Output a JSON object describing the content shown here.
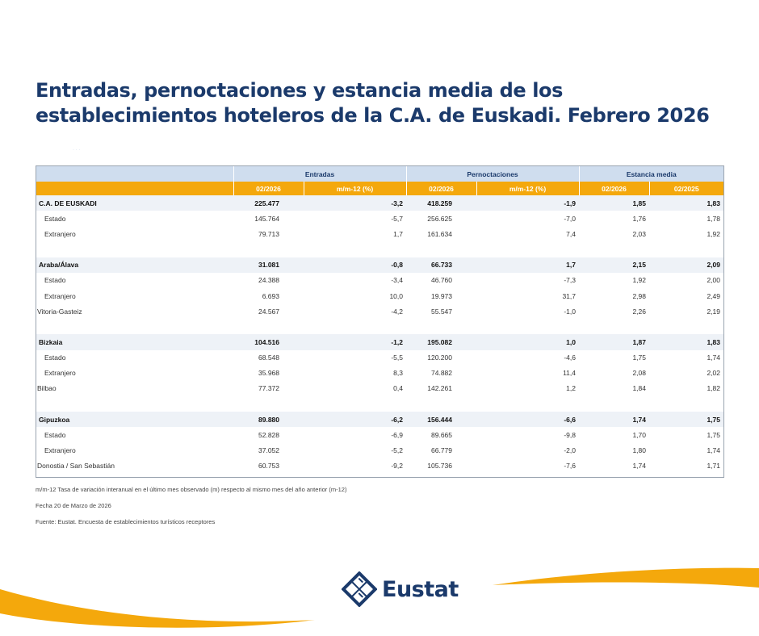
{
  "title": "Entradas, pernoctaciones y estancia media de los establecimientos hoteleros de la C.A. de Euskadi. Febrero 2026",
  "faint_text": "· ·   ·",
  "table": {
    "group_headers": [
      "Entradas",
      "Pernoctaciones",
      "Estancia media"
    ],
    "sub_headers": [
      "02/2026",
      "m/m-12 (%)",
      "02/2026",
      "m/m-12 (%)",
      "02/2026",
      "02/2025"
    ],
    "rows": [
      {
        "kind": "region",
        "label": "C.A. DE EUSKADI",
        "values": [
          "225.477",
          "-3,2",
          "418.259",
          "-1,9",
          "1,85",
          "1,83"
        ]
      },
      {
        "kind": "sub",
        "label": "Estado",
        "values": [
          "145.764",
          "-5,7",
          "256.625",
          "-7,0",
          "1,76",
          "1,78"
        ]
      },
      {
        "kind": "sub",
        "label": "Extranjero",
        "values": [
          "79.713",
          "1,7",
          "161.634",
          "7,4",
          "2,03",
          "1,92"
        ]
      },
      {
        "kind": "spacer",
        "label": "",
        "values": [
          "",
          "",
          "",
          "",
          "",
          ""
        ]
      },
      {
        "kind": "region",
        "label": "Araba/Álava",
        "values": [
          "31.081",
          "-0,8",
          "66.733",
          "1,7",
          "2,15",
          "2,09"
        ]
      },
      {
        "kind": "sub",
        "label": "Estado",
        "values": [
          "24.388",
          "-3,4",
          "46.760",
          "-7,3",
          "1,92",
          "2,00"
        ]
      },
      {
        "kind": "sub",
        "label": "Extranjero",
        "values": [
          "6.693",
          "10,0",
          "19.973",
          "31,7",
          "2,98",
          "2,49"
        ]
      },
      {
        "kind": "city",
        "label": "Vitoria-Gasteiz",
        "values": [
          "24.567",
          "-4,2",
          "55.547",
          "-1,0",
          "2,26",
          "2,19"
        ]
      },
      {
        "kind": "spacer",
        "label": "",
        "values": [
          "",
          "",
          "",
          "",
          "",
          ""
        ]
      },
      {
        "kind": "region",
        "label": "Bizkaia",
        "values": [
          "104.516",
          "-1,2",
          "195.082",
          "1,0",
          "1,87",
          "1,83"
        ]
      },
      {
        "kind": "sub",
        "label": "Estado",
        "values": [
          "68.548",
          "-5,5",
          "120.200",
          "-4,6",
          "1,75",
          "1,74"
        ]
      },
      {
        "kind": "sub",
        "label": "Extranjero",
        "values": [
          "35.968",
          "8,3",
          "74.882",
          "11,4",
          "2,08",
          "2,02"
        ]
      },
      {
        "kind": "city",
        "label": "Bilbao",
        "values": [
          "77.372",
          "0,4",
          "142.261",
          "1,2",
          "1,84",
          "1,82"
        ]
      },
      {
        "kind": "spacer",
        "label": "",
        "values": [
          "",
          "",
          "",
          "",
          "",
          ""
        ]
      },
      {
        "kind": "region",
        "label": "Gipuzkoa",
        "values": [
          "89.880",
          "-6,2",
          "156.444",
          "-6,6",
          "1,74",
          "1,75"
        ]
      },
      {
        "kind": "sub",
        "label": "Estado",
        "values": [
          "52.828",
          "-6,9",
          "89.665",
          "-9,8",
          "1,70",
          "1,75"
        ]
      },
      {
        "kind": "sub",
        "label": "Extranjero",
        "values": [
          "37.052",
          "-5,2",
          "66.779",
          "-2,0",
          "1,80",
          "1,74"
        ]
      },
      {
        "kind": "city",
        "label": "Donostia / San Sebastián",
        "values": [
          "60.753",
          "-9,2",
          "105.736",
          "-7,6",
          "1,74",
          "1,71"
        ]
      }
    ]
  },
  "notes": {
    "definition": "m/m-12 Tasa de variación interanual en el último mes observado (m) respecto al mismo mes del año anterior (m-12)",
    "date": "Fecha 20 de Marzo de 2026",
    "source": "Fuente: Eustat. Encuesta de establecimientos turísticos receptores"
  },
  "logo": {
    "text": "Eustat",
    "icon": "eustat-logo-icon"
  },
  "colors": {
    "title": "#1b3a6b",
    "header_blue": "#cfddee",
    "header_orange": "#f4a80c",
    "wave": "#f4a80c"
  }
}
